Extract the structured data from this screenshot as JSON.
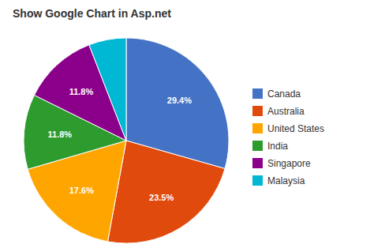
{
  "chart_data": {
    "type": "pie",
    "title": "Show Google Chart in Asp.net",
    "categories": [
      "Canada",
      "Australia",
      "United States",
      "India",
      "Singapore",
      "Malaysia"
    ],
    "values": [
      29.4,
      23.5,
      17.6,
      11.8,
      11.8,
      5.9
    ],
    "value_labels": [
      "29.4%",
      "23.5%",
      "17.6%",
      "11.8%",
      "11.8%",
      null
    ],
    "colors": [
      "#4472c4",
      "#e04b0d",
      "#ffa500",
      "#2e9b2e",
      "#8b008b",
      "#00b8d4"
    ],
    "data_labels": true,
    "legend": "right"
  }
}
